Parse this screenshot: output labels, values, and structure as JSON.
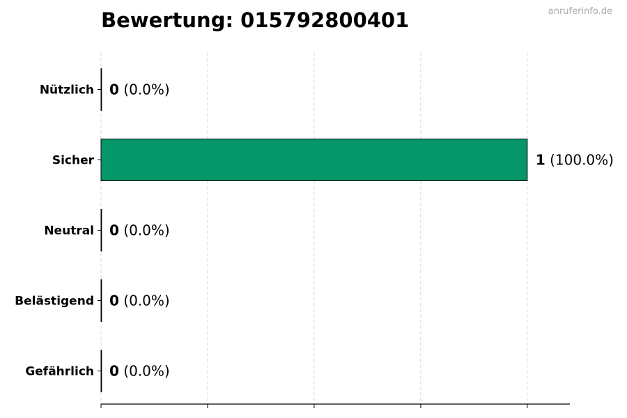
{
  "chart_data": {
    "type": "bar",
    "orientation": "horizontal",
    "title": "Bewertung: 015792800401",
    "watermark": "anruferinfo.de",
    "categories": [
      "Nützlich",
      "Sicher",
      "Neutral",
      "Belästigend",
      "Gefährlich"
    ],
    "values": [
      0,
      1,
      0,
      0,
      0
    ],
    "value_labels": [
      "0",
      "1",
      "0",
      "0",
      "0"
    ],
    "percent_labels": [
      "(0.0%)",
      "(100.0%)",
      "(0.0%)",
      "(0.0%)",
      "(0.0%)"
    ],
    "bar_color": "#059669",
    "xlim": [
      0,
      1.1
    ],
    "xticks": [
      0,
      0.25,
      0.5,
      0.75,
      1.0
    ],
    "grid": "vertical dashed",
    "xlabel": "",
    "ylabel": ""
  }
}
